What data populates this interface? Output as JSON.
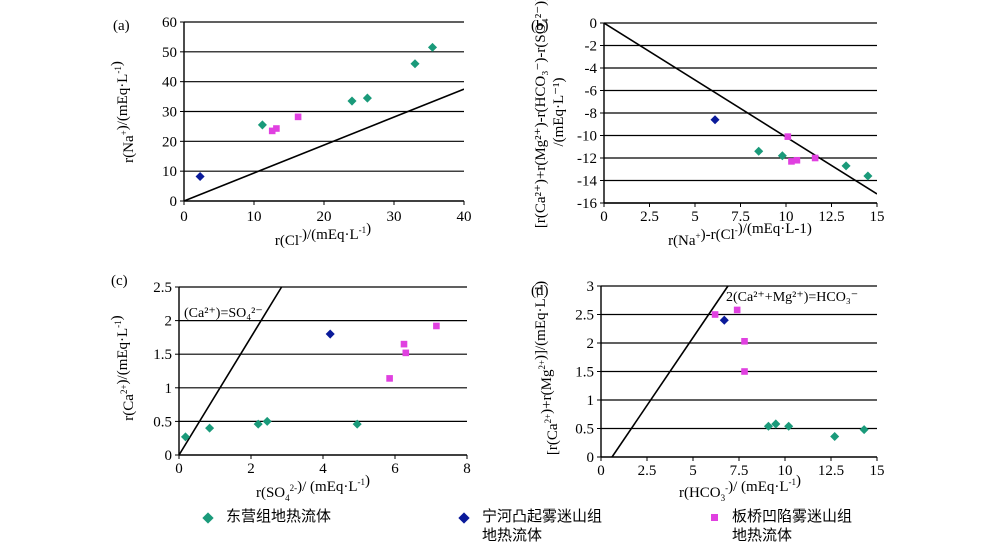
{
  "colors": {
    "dongying": "#1a9a7a",
    "ninghe": "#0a1a9a",
    "banqiao": "#e040e0"
  },
  "chart_data": [
    {
      "type": "scatter",
      "panel_label": "(a)",
      "xlabel": {
        "base": "r(Cl",
        "sup": "-",
        "tail": ")/(mEq·L",
        "sup2": "-1",
        "end": ")"
      },
      "ylabel": {
        "base": "r(Na",
        "sup": "+",
        "tail": ")/(mEq·L",
        "sup2": "-1",
        "end": ")"
      },
      "xlim": [
        0,
        40
      ],
      "ylim": [
        0,
        60
      ],
      "xticks": [
        "0",
        "10",
        "20",
        "30",
        "40"
      ],
      "yticks": [
        "0",
        "10",
        "20",
        "30",
        "40",
        "50",
        "60"
      ],
      "line": [
        [
          0,
          0
        ],
        [
          40,
          37.5
        ]
      ],
      "line_label": "",
      "series": [
        {
          "key": "dongying",
          "points": [
            [
              11.2,
              25.5
            ],
            [
              24,
              33.5
            ],
            [
              26.2,
              34.5
            ],
            [
              33,
              46
            ],
            [
              35.5,
              51.5
            ]
          ]
        },
        {
          "key": "ninghe",
          "points": [
            [
              2.3,
              8.2
            ]
          ]
        },
        {
          "key": "banqiao",
          "points": [
            [
              12.6,
              23.5
            ],
            [
              13.2,
              24.3
            ],
            [
              16.3,
              28.2
            ]
          ]
        }
      ]
    },
    {
      "type": "scatter",
      "panel_label": "(b)",
      "xlabel": {
        "base": "r(Na",
        "sup": "+",
        "tail": ")-r(Cl",
        "sup2": "-",
        "end": ")/(mEq·L-1)"
      },
      "ylabel_lines": [
        "[r(Ca²⁺)+r(Mg²⁺)-r(HCO₃⁻)-r(SO₄²⁻)]",
        "/(mEq·L⁻¹)"
      ],
      "xlim": [
        0,
        15
      ],
      "ylim": [
        -16,
        0
      ],
      "xticks": [
        "0",
        "2.5",
        "5",
        "7.5",
        "10",
        "12.5",
        "15"
      ],
      "yticks": [
        "0",
        "-2",
        "-4",
        "-6",
        "-8",
        "-10",
        "-12",
        "-14",
        "-16"
      ],
      "line": [
        [
          0,
          0
        ],
        [
          15,
          -15.2
        ]
      ],
      "line_label": "",
      "series": [
        {
          "key": "dongying",
          "points": [
            [
              8.5,
              -11.4
            ],
            [
              9.8,
              -11.8
            ],
            [
              13.3,
              -12.7
            ],
            [
              14.5,
              -13.6
            ]
          ]
        },
        {
          "key": "ninghe",
          "points": [
            [
              6.1,
              -8.6
            ]
          ]
        },
        {
          "key": "banqiao",
          "points": [
            [
              10.1,
              -10.1
            ],
            [
              10.3,
              -12.3
            ],
            [
              10.6,
              -12.2
            ],
            [
              11.6,
              -12.0
            ]
          ]
        }
      ]
    },
    {
      "type": "scatter",
      "panel_label": "(c)",
      "xlabel": {
        "base": "r(SO",
        "sub": "4",
        "sup": "2-",
        "tail": ")/ (mEq·L",
        "sup2": "-1",
        "end": ")"
      },
      "ylabel": {
        "base": "r(Ca",
        "sup": "2+",
        "tail": ")/(mEq·L",
        "sup2": "-1",
        "end": ")"
      },
      "xlim": [
        0,
        8
      ],
      "ylim": [
        0,
        2.5
      ],
      "xticks": [
        "0",
        "2",
        "4",
        "6",
        "8"
      ],
      "yticks": [
        "0",
        "0.5",
        "1",
        "1.5",
        "2",
        "2.5"
      ],
      "line": [
        [
          0,
          0
        ],
        [
          2.85,
          2.5
        ]
      ],
      "line_label": "(Ca²⁺)=SO₄²⁻",
      "series": [
        {
          "key": "dongying",
          "points": [
            [
              0.18,
              0.27
            ],
            [
              0.85,
              0.4
            ],
            [
              2.2,
              0.46
            ],
            [
              2.45,
              0.5
            ],
            [
              4.95,
              0.46
            ]
          ]
        },
        {
          "key": "ninghe",
          "points": [
            [
              4.2,
              1.8
            ]
          ]
        },
        {
          "key": "banqiao",
          "points": [
            [
              5.85,
              1.14
            ],
            [
              6.25,
              1.65
            ],
            [
              6.3,
              1.52
            ],
            [
              7.15,
              1.92
            ]
          ]
        }
      ]
    },
    {
      "type": "scatter",
      "panel_label": "(d)",
      "xlabel": {
        "base": "r(HCO",
        "sub": "3",
        "sup": "-",
        "tail": ")/ (mEq·L",
        "sup2": "-1",
        "end": ")"
      },
      "ylabel": {
        "base": "[r(Ca",
        "sup": "2+",
        "tail": ")+r(Mg",
        "sup2": "2+",
        "end": ")]/(mEq·L⁻¹)"
      },
      "xlim": [
        0,
        15
      ],
      "ylim": [
        0,
        3
      ],
      "xticks": [
        "0",
        "2.5",
        "5",
        "7.5",
        "10",
        "12.5",
        "15"
      ],
      "yticks": [
        "0",
        "0.5",
        "1",
        "1.5",
        "2",
        "2.5",
        "3"
      ],
      "line": [
        [
          0.6,
          0
        ],
        [
          6.9,
          3.0
        ]
      ],
      "line_label": "2(Ca²⁺+Mg²⁺)=HCO₃⁻",
      "series": [
        {
          "key": "dongying",
          "points": [
            [
              9.1,
              0.54
            ],
            [
              9.5,
              0.58
            ],
            [
              10.2,
              0.54
            ],
            [
              12.7,
              0.36
            ],
            [
              14.3,
              0.48
            ]
          ]
        },
        {
          "key": "ninghe",
          "points": [
            [
              6.7,
              2.4
            ]
          ]
        },
        {
          "key": "banqiao",
          "points": [
            [
              6.2,
              2.5
            ],
            [
              7.4,
              2.58
            ],
            [
              7.8,
              2.03
            ],
            [
              7.8,
              1.5
            ]
          ]
        }
      ]
    }
  ],
  "legend": [
    {
      "key": "dongying",
      "label": "东营组地热流体",
      "shape": "diamond"
    },
    {
      "key": "ninghe",
      "label": "宁河凸起雾迷山组\n地热流体",
      "shape": "diamond"
    },
    {
      "key": "banqiao",
      "label": "板桥凹陷雾迷山组\n地热流体",
      "shape": "square"
    }
  ]
}
